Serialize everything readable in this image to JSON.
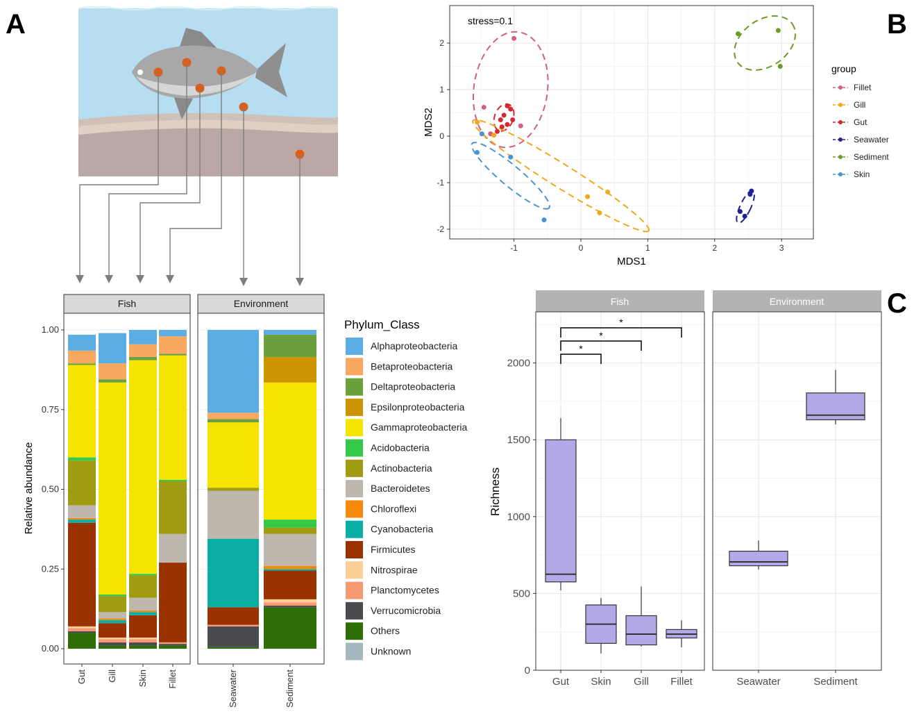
{
  "panel_letters": {
    "a": "A",
    "b": "B",
    "c": "C"
  },
  "colors": {
    "Alphaproteobacteria": "#5aaee3",
    "Betaproteobacteria": "#f9a860",
    "Deltaproteobacteria": "#6aa13c",
    "Epsilonproteobacteria": "#cc9400",
    "Gammaproteobacteria": "#f5e400",
    "Acidobacteria": "#35c94a",
    "Actinobacteria": "#a09b12",
    "Bacteroidetes": "#bdb7ae",
    "Chloroflexi": "#f58a0c",
    "Cyanobacteria": "#0aaea5",
    "Firmicutes": "#9a3200",
    "Nitrospirae": "#fbcf96",
    "Planctomycetes": "#f79a73",
    "Verrucomicrobia": "#4a4a4f",
    "Others": "#2f6e06",
    "Unknown": "#a6b8bf",
    "Fillet": "#d0607f",
    "Gill": "#f1a81f",
    "Gut": "#d4282e",
    "Seawater": "#1c2290",
    "Sediment": "#6b9a28",
    "Skin": "#4a93cf",
    "box_fill": "#b5a8e8",
    "strip_a": "#d9d9d9",
    "strip_c": "#b3b3b3"
  },
  "chart_data": [
    {
      "panel": "A",
      "type": "bar",
      "stacked": true,
      "ylabel": "Relative abundance",
      "ylim": [
        0,
        1
      ],
      "yticks": [
        "0.00",
        "0.25",
        "0.50",
        "0.75",
        "1.00"
      ],
      "facets": [
        "Fish",
        "Environment"
      ],
      "legend_title": "Phylum_Class",
      "legend_placement": "right",
      "series_order": [
        "Alphaproteobacteria",
        "Betaproteobacteria",
        "Deltaproteobacteria",
        "Epsilonproteobacteria",
        "Gammaproteobacteria",
        "Acidobacteria",
        "Actinobacteria",
        "Bacteroidetes",
        "Chloroflexi",
        "Cyanobacteria",
        "Firmicutes",
        "Nitrospirae",
        "Planctomycetes",
        "Verrucomicrobia",
        "Others",
        "Unknown"
      ],
      "stack_order_bottom_to_top": [
        "Others",
        "Verrucomicrobia",
        "Planctomycetes",
        "Nitrospirae",
        "Firmicutes",
        "Cyanobacteria",
        "Chloroflexi",
        "Bacteroidetes",
        "Actinobacteria",
        "Acidobacteria",
        "Gammaproteobacteria",
        "Epsilonproteobacteria",
        "Deltaproteobacteria",
        "Betaproteobacteria",
        "Alphaproteobacteria"
      ],
      "bars": [
        {
          "facet": "Fish",
          "label": "Gut",
          "values": {
            "Others": 0.05,
            "Verrucomicrobia": 0.005,
            "Planctomycetes": 0.01,
            "Nitrospirae": 0.005,
            "Firmicutes": 0.325,
            "Cyanobacteria": 0.01,
            "Chloroflexi": 0.005,
            "Bacteroidetes": 0.04,
            "Actinobacteria": 0.14,
            "Acidobacteria": 0.01,
            "Gammaproteobacteria": 0.29,
            "Epsilonproteobacteria": 0.0,
            "Deltaproteobacteria": 0.005,
            "Betaproteobacteria": 0.04,
            "Alphaproteobacteria": 0.05
          }
        },
        {
          "facet": "Fish",
          "label": "Gill",
          "values": {
            "Others": 0.01,
            "Verrucomicrobia": 0.01,
            "Planctomycetes": 0.01,
            "Nitrospirae": 0.005,
            "Firmicutes": 0.045,
            "Cyanobacteria": 0.01,
            "Chloroflexi": 0.005,
            "Bacteroidetes": 0.02,
            "Actinobacteria": 0.05,
            "Acidobacteria": 0.005,
            "Gammaproteobacteria": 0.665,
            "Epsilonproteobacteria": 0.0,
            "Deltaproteobacteria": 0.01,
            "Betaproteobacteria": 0.05,
            "Alphaproteobacteria": 0.095
          }
        },
        {
          "facet": "Fish",
          "label": "Skin",
          "values": {
            "Others": 0.01,
            "Verrucomicrobia": 0.01,
            "Planctomycetes": 0.01,
            "Nitrospirae": 0.005,
            "Firmicutes": 0.07,
            "Cyanobacteria": 0.01,
            "Chloroflexi": 0.005,
            "Bacteroidetes": 0.04,
            "Actinobacteria": 0.07,
            "Acidobacteria": 0.005,
            "Gammaproteobacteria": 0.67,
            "Epsilonproteobacteria": 0.0,
            "Deltaproteobacteria": 0.01,
            "Betaproteobacteria": 0.04,
            "Alphaproteobacteria": 0.045
          }
        },
        {
          "facet": "Fish",
          "label": "Fillet",
          "values": {
            "Others": 0.01,
            "Verrucomicrobia": 0.005,
            "Planctomycetes": 0.005,
            "Nitrospirae": 0.0,
            "Firmicutes": 0.25,
            "Cyanobacteria": 0.0,
            "Chloroflexi": 0.0,
            "Bacteroidetes": 0.09,
            "Actinobacteria": 0.165,
            "Acidobacteria": 0.005,
            "Gammaproteobacteria": 0.39,
            "Epsilonproteobacteria": 0.0,
            "Deltaproteobacteria": 0.005,
            "Betaproteobacteria": 0.055,
            "Alphaproteobacteria": 0.02
          }
        },
        {
          "facet": "Environment",
          "label": "Seawater",
          "values": {
            "Others": 0.005,
            "Verrucomicrobia": 0.065,
            "Planctomycetes": 0.005,
            "Nitrospirae": 0.0,
            "Firmicutes": 0.055,
            "Cyanobacteria": 0.215,
            "Chloroflexi": 0.0,
            "Bacteroidetes": 0.15,
            "Actinobacteria": 0.01,
            "Acidobacteria": 0.0,
            "Gammaproteobacteria": 0.205,
            "Epsilonproteobacteria": 0.0,
            "Deltaproteobacteria": 0.01,
            "Betaproteobacteria": 0.02,
            "Alphaproteobacteria": 0.26
          }
        },
        {
          "facet": "Environment",
          "label": "Sediment",
          "values": {
            "Others": 0.13,
            "Verrucomicrobia": 0.005,
            "Planctomycetes": 0.01,
            "Nitrospirae": 0.01,
            "Firmicutes": 0.09,
            "Cyanobacteria": 0.005,
            "Chloroflexi": 0.01,
            "Bacteroidetes": 0.1,
            "Actinobacteria": 0.02,
            "Acidobacteria": 0.025,
            "Gammaproteobacteria": 0.43,
            "Epsilonproteobacteria": 0.08,
            "Deltaproteobacteria": 0.07,
            "Betaproteobacteria": 0.0,
            "Alphaproteobacteria": 0.015
          }
        }
      ]
    },
    {
      "panel": "B",
      "type": "scatter",
      "xlabel": "MDS1",
      "ylabel": "MDS2",
      "xlim": [
        -2.0,
        3.5
      ],
      "ylim": [
        -2.2,
        2.5
      ],
      "xticks": [
        "-1",
        "0",
        "1",
        "2",
        "3"
      ],
      "yticks": [
        "-2",
        "-1",
        "0",
        "1",
        "2"
      ],
      "annotation": "stress=0.1",
      "legend_title": "group",
      "legend_placement": "right",
      "grid": true,
      "series": [
        {
          "name": "Fillet",
          "points": [
            [
              -1.0,
              2.1
            ],
            [
              -1.45,
              0.62
            ],
            [
              -0.9,
              0.22
            ],
            [
              -1.35,
              0.05
            ]
          ]
        },
        {
          "name": "Gill",
          "points": [
            [
              -1.55,
              0.3
            ],
            [
              -1.3,
              0.02
            ],
            [
              0.1,
              -1.3
            ],
            [
              0.4,
              -1.2
            ],
            [
              0.28,
              -1.65
            ]
          ]
        },
        {
          "name": "Gut",
          "points": [
            [
              -1.1,
              0.65
            ],
            [
              -1.05,
              0.58
            ],
            [
              -1.15,
              0.45
            ],
            [
              -1.2,
              0.35
            ],
            [
              -1.02,
              0.35
            ],
            [
              -1.1,
              0.25
            ],
            [
              -1.18,
              0.2
            ],
            [
              -1.25,
              0.1
            ]
          ]
        },
        {
          "name": "Seawater",
          "points": [
            [
              2.38,
              -1.62
            ],
            [
              2.45,
              -1.72
            ],
            [
              2.53,
              -1.25
            ],
            [
              2.55,
              -1.18
            ]
          ]
        },
        {
          "name": "Sediment",
          "points": [
            [
              2.35,
              2.2
            ],
            [
              2.95,
              2.27
            ],
            [
              2.98,
              1.5
            ]
          ]
        },
        {
          "name": "Skin",
          "points": [
            [
              -1.48,
              0.05
            ],
            [
              -1.55,
              -0.35
            ],
            [
              -1.05,
              -0.45
            ],
            [
              -0.55,
              -1.8
            ]
          ]
        }
      ]
    },
    {
      "panel": "C",
      "type": "box",
      "ylabel": "Richness",
      "ylim": [
        0,
        2500
      ],
      "yticks": [
        "0",
        "500",
        "1000",
        "1500",
        "2000"
      ],
      "facets": [
        "Fish",
        "Environment"
      ],
      "grid": true,
      "significance": [
        {
          "from": "Gut",
          "to": "Skin",
          "label": "*"
        },
        {
          "from": "Gut",
          "to": "Gill",
          "label": "*"
        },
        {
          "from": "Gut",
          "to": "Fillet",
          "label": "*"
        }
      ],
      "boxes": [
        {
          "facet": "Fish",
          "label": "Gut",
          "min": 520,
          "q1": 575,
          "median": 625,
          "q3": 1500,
          "max": 1640
        },
        {
          "facet": "Fish",
          "label": "Skin",
          "min": 110,
          "q1": 175,
          "median": 300,
          "q3": 425,
          "max": 470
        },
        {
          "facet": "Fish",
          "label": "Gill",
          "min": 155,
          "q1": 165,
          "median": 235,
          "q3": 355,
          "max": 545
        },
        {
          "facet": "Fish",
          "label": "Fillet",
          "min": 150,
          "q1": 210,
          "median": 235,
          "q3": 265,
          "max": 325
        },
        {
          "facet": "Environment",
          "label": "Seawater",
          "min": 655,
          "q1": 680,
          "median": 705,
          "q3": 775,
          "max": 845
        },
        {
          "facet": "Environment",
          "label": "Sediment",
          "min": 1600,
          "q1": 1630,
          "median": 1660,
          "q3": 1805,
          "max": 1955
        }
      ]
    }
  ]
}
